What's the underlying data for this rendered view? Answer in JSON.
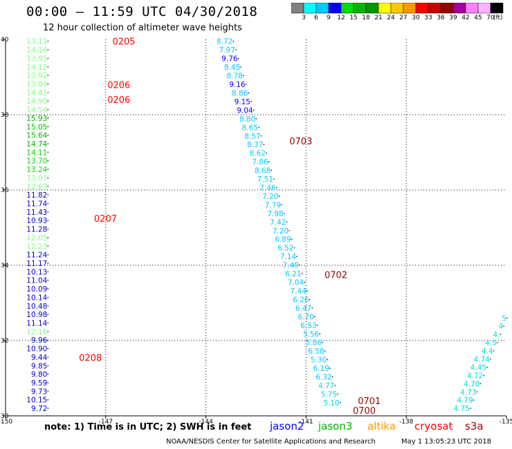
{
  "header": {
    "title": "00:00 – 11:59 UTC 04/30/2018",
    "subtitle": "12 hour collection of altimeter wave heights"
  },
  "colorbar": {
    "colors": [
      "#808080",
      "#00ffff",
      "#00c8ff",
      "#0000ff",
      "#00dc00",
      "#00b400",
      "#009600",
      "#ffff00",
      "#ffc800",
      "#ff9600",
      "#ff0000",
      "#c80000",
      "#960000",
      "#a000a0",
      "#ff80ff",
      "#ffb4ff",
      "#000000"
    ],
    "labels": [
      "3",
      "6",
      "9",
      "12",
      "15",
      "18",
      "21",
      "24",
      "27",
      "30",
      "33",
      "36",
      "39",
      "42",
      "45",
      "70"
    ],
    "unit": "(ft)"
  },
  "map": {
    "lon_range": [
      -150,
      -135
    ],
    "lat_range": [
      30,
      40
    ],
    "lon_ticks": [
      "-150",
      "-147",
      "-144",
      "-141",
      "-138",
      "-135"
    ],
    "lat_ticks": [
      "30",
      "32",
      "34",
      "36",
      "38",
      "40"
    ],
    "dotted_lons": [
      -147,
      -144,
      -141,
      -138
    ],
    "dotted_lats": [
      32,
      34,
      36,
      38
    ]
  },
  "tracks": [
    {
      "name": "track-150",
      "lon": -148.75,
      "lat_top": 39.95,
      "lat_bottom": 30.2,
      "values": [
        "13.11",
        "14.14",
        "13.95",
        "14.12",
        "13.92",
        "13.84",
        "14.41",
        "14.90",
        "14.54",
        "15.93",
        "15.05",
        "15.64",
        "14.74",
        "14.11",
        "13.70",
        "13.24",
        "13.07",
        "12.63",
        "11.82",
        "11.74",
        "11.43",
        "10.93",
        "11.28",
        "12.05",
        "12.23",
        "11.24",
        "11.17",
        "10.13",
        "11.04",
        "10.09",
        "10.14",
        "10.48",
        "10.98",
        "11.14",
        "12.16",
        "9.96",
        "10.90",
        "9.44",
        "9.85",
        "9.80",
        "9.59",
        "9.73",
        "10.15",
        "9.72"
      ],
      "colors": [
        "#80ff80",
        "#80ff80",
        "#80ff80",
        "#80ff80",
        "#80ff80",
        "#80ff80",
        "#80ff80",
        "#80ff80",
        "#80ff80",
        "#00b400",
        "#00b400",
        "#00b400",
        "#00b400",
        "#00dc00",
        "#00dc00",
        "#00dc00",
        "#80ff80",
        "#80ff80",
        "#0000c8",
        "#0000c8",
        "#0000c8",
        "#0000c8",
        "#0000c8",
        "#80ff80",
        "#80ff80",
        "#0000c8",
        "#0000c8",
        "#0000c8",
        "#0000c8",
        "#0000c8",
        "#0000c8",
        "#0000c8",
        "#0000c8",
        "#0000c8",
        "#80ff80",
        "#0000c8",
        "#0000c8",
        "#0000c8",
        "#0000c8",
        "#0000c8",
        "#0000c8",
        "#0000c8",
        "#0000c8",
        "#0000c8"
      ]
    },
    {
      "name": "track-144",
      "lon_top": -143.2,
      "lon_bottom": -140.0,
      "lat_top": 39.95,
      "lat_bottom": 30.35,
      "values": [
        "8.72",
        "7.97",
        "9.76",
        "8.45",
        "8.78",
        "9.16",
        "8.86",
        "9.15",
        "9.04",
        "8.80",
        "8.65",
        "8.57",
        "8.37",
        "8.62",
        "7.86",
        "8.68",
        "7.51",
        "7.46",
        "7.20",
        "7.79",
        "7.98",
        "7.42",
        "7.20",
        "6.89",
        "6.52",
        "7.14",
        "7.40",
        "6.21",
        "7.04",
        "7.44",
        "6.26",
        "6.47",
        "6.70",
        "6.53",
        "5.56",
        "5.86",
        "6.58",
        "5.30",
        "6.19",
        "6.32",
        "4.77",
        "5.75",
        "5.10"
      ],
      "colors": [
        "#00c8ff",
        "#00c8ff",
        "#0000ff",
        "#00c8ff",
        "#00c8ff",
        "#0000ff",
        "#00c8ff",
        "#0000ff",
        "#0000ff",
        "#00c8ff",
        "#00c8ff",
        "#00c8ff",
        "#00c8ff",
        "#00c8ff",
        "#00c8ff",
        "#00c8ff",
        "#00c8ff",
        "#00c8ff",
        "#00c8ff",
        "#00c8ff",
        "#00c8ff",
        "#00c8ff",
        "#00c8ff",
        "#00c8ff",
        "#00c8ff",
        "#00c8ff",
        "#00c8ff",
        "#00c8ff",
        "#00c8ff",
        "#00c8ff",
        "#00c8ff",
        "#00c8ff",
        "#00c8ff",
        "#00c8ff",
        "#00c8ff",
        "#00c8ff",
        "#00c8ff",
        "#00c8ff",
        "#00c8ff",
        "#00c8ff",
        "#00dcdc",
        "#00dcdc",
        "#00dcdc"
      ]
    },
    {
      "name": "track-136",
      "lon_top": -135.0,
      "lon_bottom": -136.1,
      "lat_top": 32.6,
      "lat_bottom": 30.2,
      "values": [
        "5",
        "4",
        "4.",
        "4.5",
        "4.4",
        "4.74",
        "4.45",
        "4.72",
        "4.70",
        "4.73",
        "4.79",
        "4.75"
      ],
      "colors": [
        "#00dcdc",
        "#00dcdc",
        "#00dcdc",
        "#00dcdc",
        "#00dcdc",
        "#00dcdc",
        "#00dcdc",
        "#00dcdc",
        "#00dcdc",
        "#00dcdc",
        "#00dcdc",
        "#00dcdc"
      ]
    }
  ],
  "time_labels": [
    {
      "text": "0205",
      "color": "#ff0000",
      "lon": -146.8,
      "lat": 39.95
    },
    {
      "text": "0206",
      "color": "#ff0000",
      "lon": -146.95,
      "lat": 38.8
    },
    {
      "text": "0206",
      "color": "#ff0000",
      "lon": -146.95,
      "lat": 38.4
    },
    {
      "text": "0207",
      "color": "#ff0000",
      "lon": -147.35,
      "lat": 35.25
    },
    {
      "text": "0208",
      "color": "#ff0000",
      "lon": -147.8,
      "lat": 31.55
    },
    {
      "text": "0703",
      "color": "#960000",
      "lon": -141.5,
      "lat": 37.3
    },
    {
      "text": "0702",
      "color": "#960000",
      "lon": -140.45,
      "lat": 33.75
    },
    {
      "text": "0701",
      "color": "#960000",
      "lon": -139.45,
      "lat": 30.4
    },
    {
      "text": "0700",
      "color": "#960000",
      "lon": -139.6,
      "lat": 30.15
    }
  ],
  "note": "note:  1) Time is in UTC; 2) SWH is in feet",
  "legend": [
    {
      "text": "jason2",
      "color": "#0000ff"
    },
    {
      "text": "jason3",
      "color": "#00b400"
    },
    {
      "text": "altika",
      "color": "#ff9600"
    },
    {
      "text": "cryosat",
      "color": "#ff0000"
    },
    {
      "text": "s3a",
      "color": "#960000"
    }
  ],
  "credit": "NOAA/NESDIS Center for Satellite Applications and Research",
  "generated": "May  1 13:05:23 UTC 2018"
}
